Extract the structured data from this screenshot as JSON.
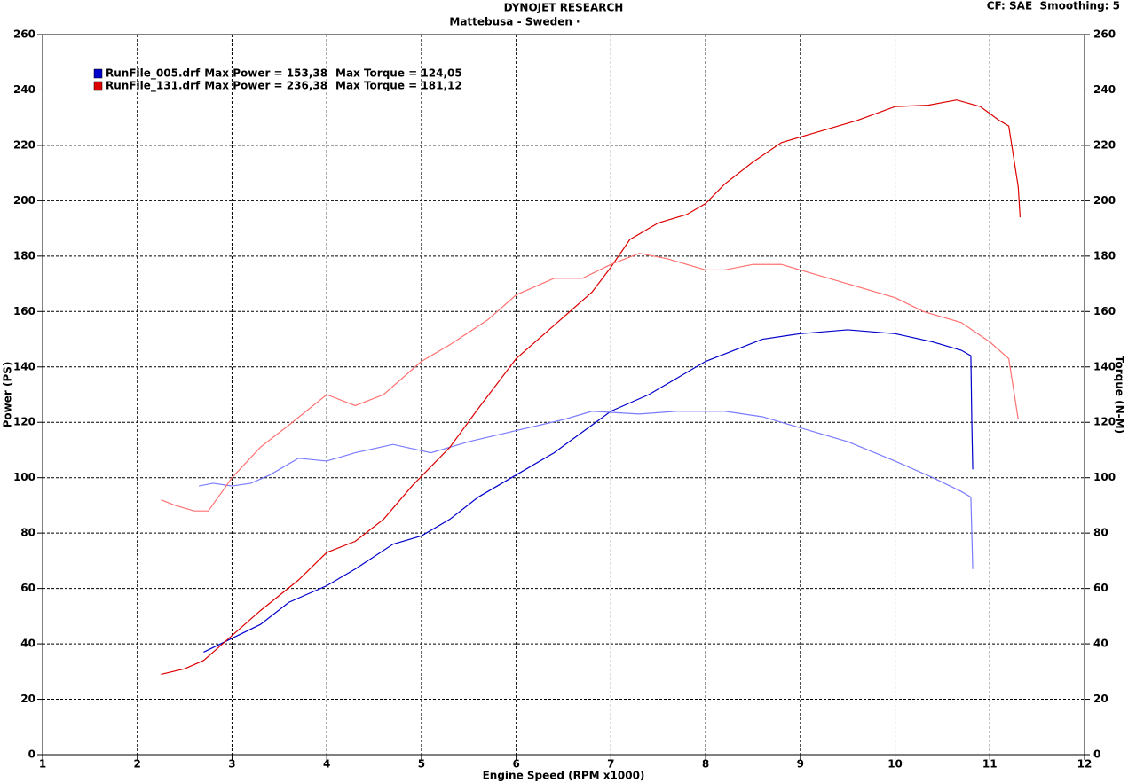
{
  "chart_data": {
    "type": "line",
    "title": "DYNOJET RESEARCH",
    "subtitle": "Mattebusa - Sweden ·",
    "corner_note": "CF: SAE  Smoothing: 5",
    "x_label": "Engine Speed (RPM x1000)",
    "y_label": "Power (PS)",
    "y2_label": "Torque (N-M)",
    "xlim": [
      1,
      12
    ],
    "xticks": [
      1,
      2,
      3,
      4,
      5,
      6,
      7,
      8,
      9,
      10,
      11,
      12
    ],
    "ylim": [
      0,
      260
    ],
    "yticks": [
      0,
      20,
      40,
      60,
      80,
      100,
      120,
      140,
      160,
      180,
      200,
      220,
      240,
      260
    ],
    "y2lim": [
      0,
      260
    ],
    "y2ticks": [
      0,
      20,
      40,
      60,
      80,
      100,
      120,
      140,
      160,
      180,
      200,
      220,
      240,
      260
    ],
    "grid": true,
    "legend": [
      {
        "power": "Max Power = 153,38",
        "torque": "Max Torque = 124,05"
      },
      {
        "power": "Max Power = 236,38",
        "torque": "Max Torque = 181,12"
      }
    ],
    "series": [
      {
        "name": "RunFile_005.drf",
        "color": "#0000cc",
        "x": [
          2.7,
          3.0,
          3.3,
          3.6,
          4.0,
          4.3,
          4.7,
          5.0,
          5.3,
          5.6,
          6.0,
          6.4,
          6.8,
          7.0,
          7.4,
          7.7,
          8.0,
          8.3,
          8.6,
          9.0,
          9.5,
          10.0,
          10.4,
          10.7,
          10.8,
          10.81,
          10.82
        ],
        "values": [
          37,
          42,
          47,
          55,
          61,
          67,
          76,
          79,
          85,
          93,
          101,
          109,
          119,
          124,
          130,
          136,
          142,
          146,
          150,
          152,
          153.4,
          152,
          149,
          146,
          144,
          120,
          103
        ]
      },
      {
        "color": "#7b7bff",
        "axis": "y2",
        "x": [
          2.65,
          2.8,
          3.0,
          3.2,
          3.4,
          3.7,
          4.0,
          4.3,
          4.7,
          5.1,
          5.5,
          6.0,
          6.5,
          6.8,
          7.3,
          7.7,
          8.2,
          8.6,
          9.0,
          9.5,
          10.0,
          10.4,
          10.7,
          10.8,
          10.81,
          10.82
        ],
        "values": [
          97,
          98,
          97,
          98,
          101,
          107,
          106,
          109,
          112,
          109,
          113,
          117,
          121,
          124,
          123,
          124,
          124,
          122,
          118,
          113,
          106,
          100,
          95,
          93,
          80,
          67
        ]
      },
      {
        "name": "RunFile_131.drf",
        "color": "#dd0000",
        "x": [
          2.25,
          2.5,
          2.7,
          3.0,
          3.3,
          3.7,
          4.0,
          4.3,
          4.6,
          4.9,
          5.3,
          5.6,
          6.0,
          6.4,
          6.8,
          7.0,
          7.2,
          7.5,
          7.8,
          8.0,
          8.2,
          8.5,
          8.8,
          9.2,
          9.6,
          10.0,
          10.35,
          10.65,
          10.9,
          11.1,
          11.2,
          11.3,
          11.32
        ],
        "values": [
          29,
          31,
          34,
          43,
          52,
          63,
          73,
          77,
          85,
          97,
          111,
          125,
          143,
          155,
          167,
          176,
          186,
          192,
          195,
          199,
          206,
          214,
          221,
          225,
          229,
          234,
          234.5,
          236.4,
          234,
          229,
          227,
          205,
          194
        ]
      },
      {
        "color": "#ff7070",
        "axis": "y2",
        "x": [
          2.25,
          2.4,
          2.6,
          2.75,
          3.0,
          3.3,
          3.6,
          4.0,
          4.3,
          4.6,
          5.0,
          5.3,
          5.7,
          6.0,
          6.4,
          6.7,
          7.0,
          7.3,
          7.6,
          8.0,
          8.2,
          8.5,
          8.8,
          9.2,
          9.6,
          10.0,
          10.3,
          10.7,
          11.0,
          11.2,
          11.3
        ],
        "values": [
          92,
          90,
          88,
          88,
          100,
          111,
          119,
          130,
          126,
          130,
          142,
          148,
          157,
          166,
          172,
          172,
          177,
          181,
          179,
          175,
          175,
          177,
          177,
          173,
          169,
          165,
          160,
          156,
          149,
          143,
          121
        ]
      }
    ]
  }
}
